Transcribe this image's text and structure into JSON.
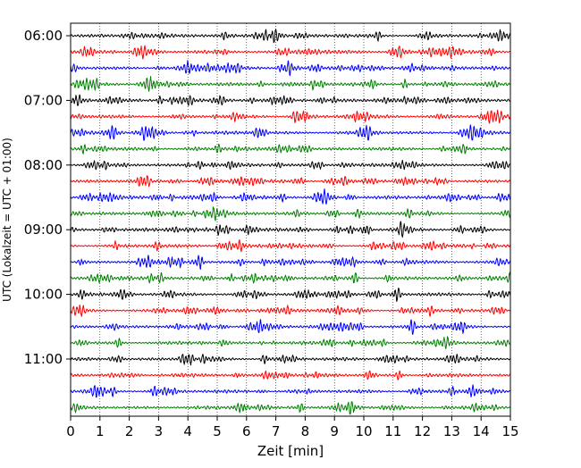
{
  "chart_data": {
    "type": "line",
    "title": "",
    "xlabel": "Zeit  [min]",
    "ylabel": "UTC (Lokalzeit = UTC + 01:00)",
    "xlim": [
      0,
      15
    ],
    "x_ticks": [
      "0",
      "1",
      "2",
      "3",
      "4",
      "5",
      "6",
      "7",
      "8",
      "9",
      "10",
      "11",
      "12",
      "13",
      "14",
      "15"
    ],
    "y_tick_labels": [
      "06:00",
      "07:00",
      "08:00",
      "09:00",
      "10:00",
      "11:00"
    ],
    "grid": "vertical dotted lines at each minute",
    "trace_interval_minutes": 15,
    "trace_start_times_utc": [
      "06:00",
      "06:15",
      "06:30",
      "06:45",
      "07:00",
      "07:15",
      "07:30",
      "07:45",
      "08:00",
      "08:15",
      "08:30",
      "08:45",
      "09:00",
      "09:15",
      "09:30",
      "09:45",
      "10:00",
      "10:15",
      "10:30",
      "10:45",
      "11:00",
      "11:15",
      "11:30",
      "11:45"
    ],
    "trace_colors": [
      "#000000",
      "#ff0000",
      "#0000ff",
      "#008000"
    ]
  }
}
